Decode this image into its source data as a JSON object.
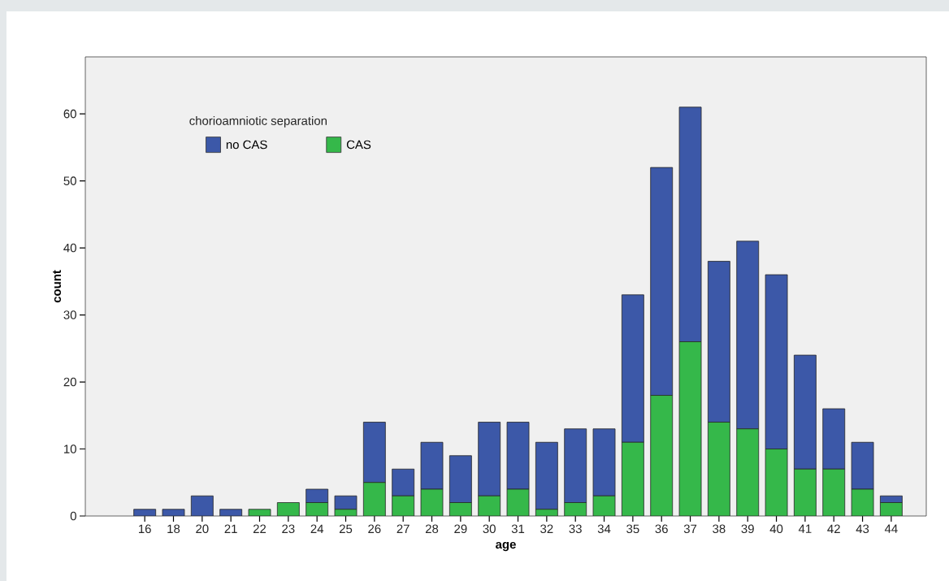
{
  "chart_data": {
    "type": "bar",
    "stacked": true,
    "xlabel": "age",
    "ylabel": "count",
    "legend_title": "chorioamniotic separation",
    "legend": "top left",
    "categories": [
      "16",
      "18",
      "20",
      "21",
      "22",
      "23",
      "24",
      "25",
      "26",
      "27",
      "28",
      "29",
      "30",
      "31",
      "32",
      "33",
      "34",
      "35",
      "36",
      "37",
      "38",
      "39",
      "40",
      "41",
      "42",
      "43",
      "44"
    ],
    "series": [
      {
        "name": "CAS",
        "color": "#35b84a",
        "values": [
          0,
          0,
          0,
          0,
          1,
          2,
          2,
          1,
          5,
          3,
          4,
          2,
          3,
          4,
          1,
          2,
          3,
          11,
          18,
          26,
          14,
          13,
          10,
          7,
          7,
          4,
          2
        ]
      },
      {
        "name": "no CAS",
        "color": "#3c58a8",
        "values": [
          1,
          1,
          3,
          1,
          0,
          0,
          2,
          2,
          9,
          4,
          7,
          7,
          11,
          10,
          10,
          11,
          10,
          22,
          34,
          35,
          24,
          28,
          26,
          17,
          9,
          7,
          1
        ]
      }
    ],
    "ylim": [
      0,
      68.5
    ],
    "yticks": [
      0,
      10,
      20,
      30,
      40,
      50,
      60
    ]
  }
}
